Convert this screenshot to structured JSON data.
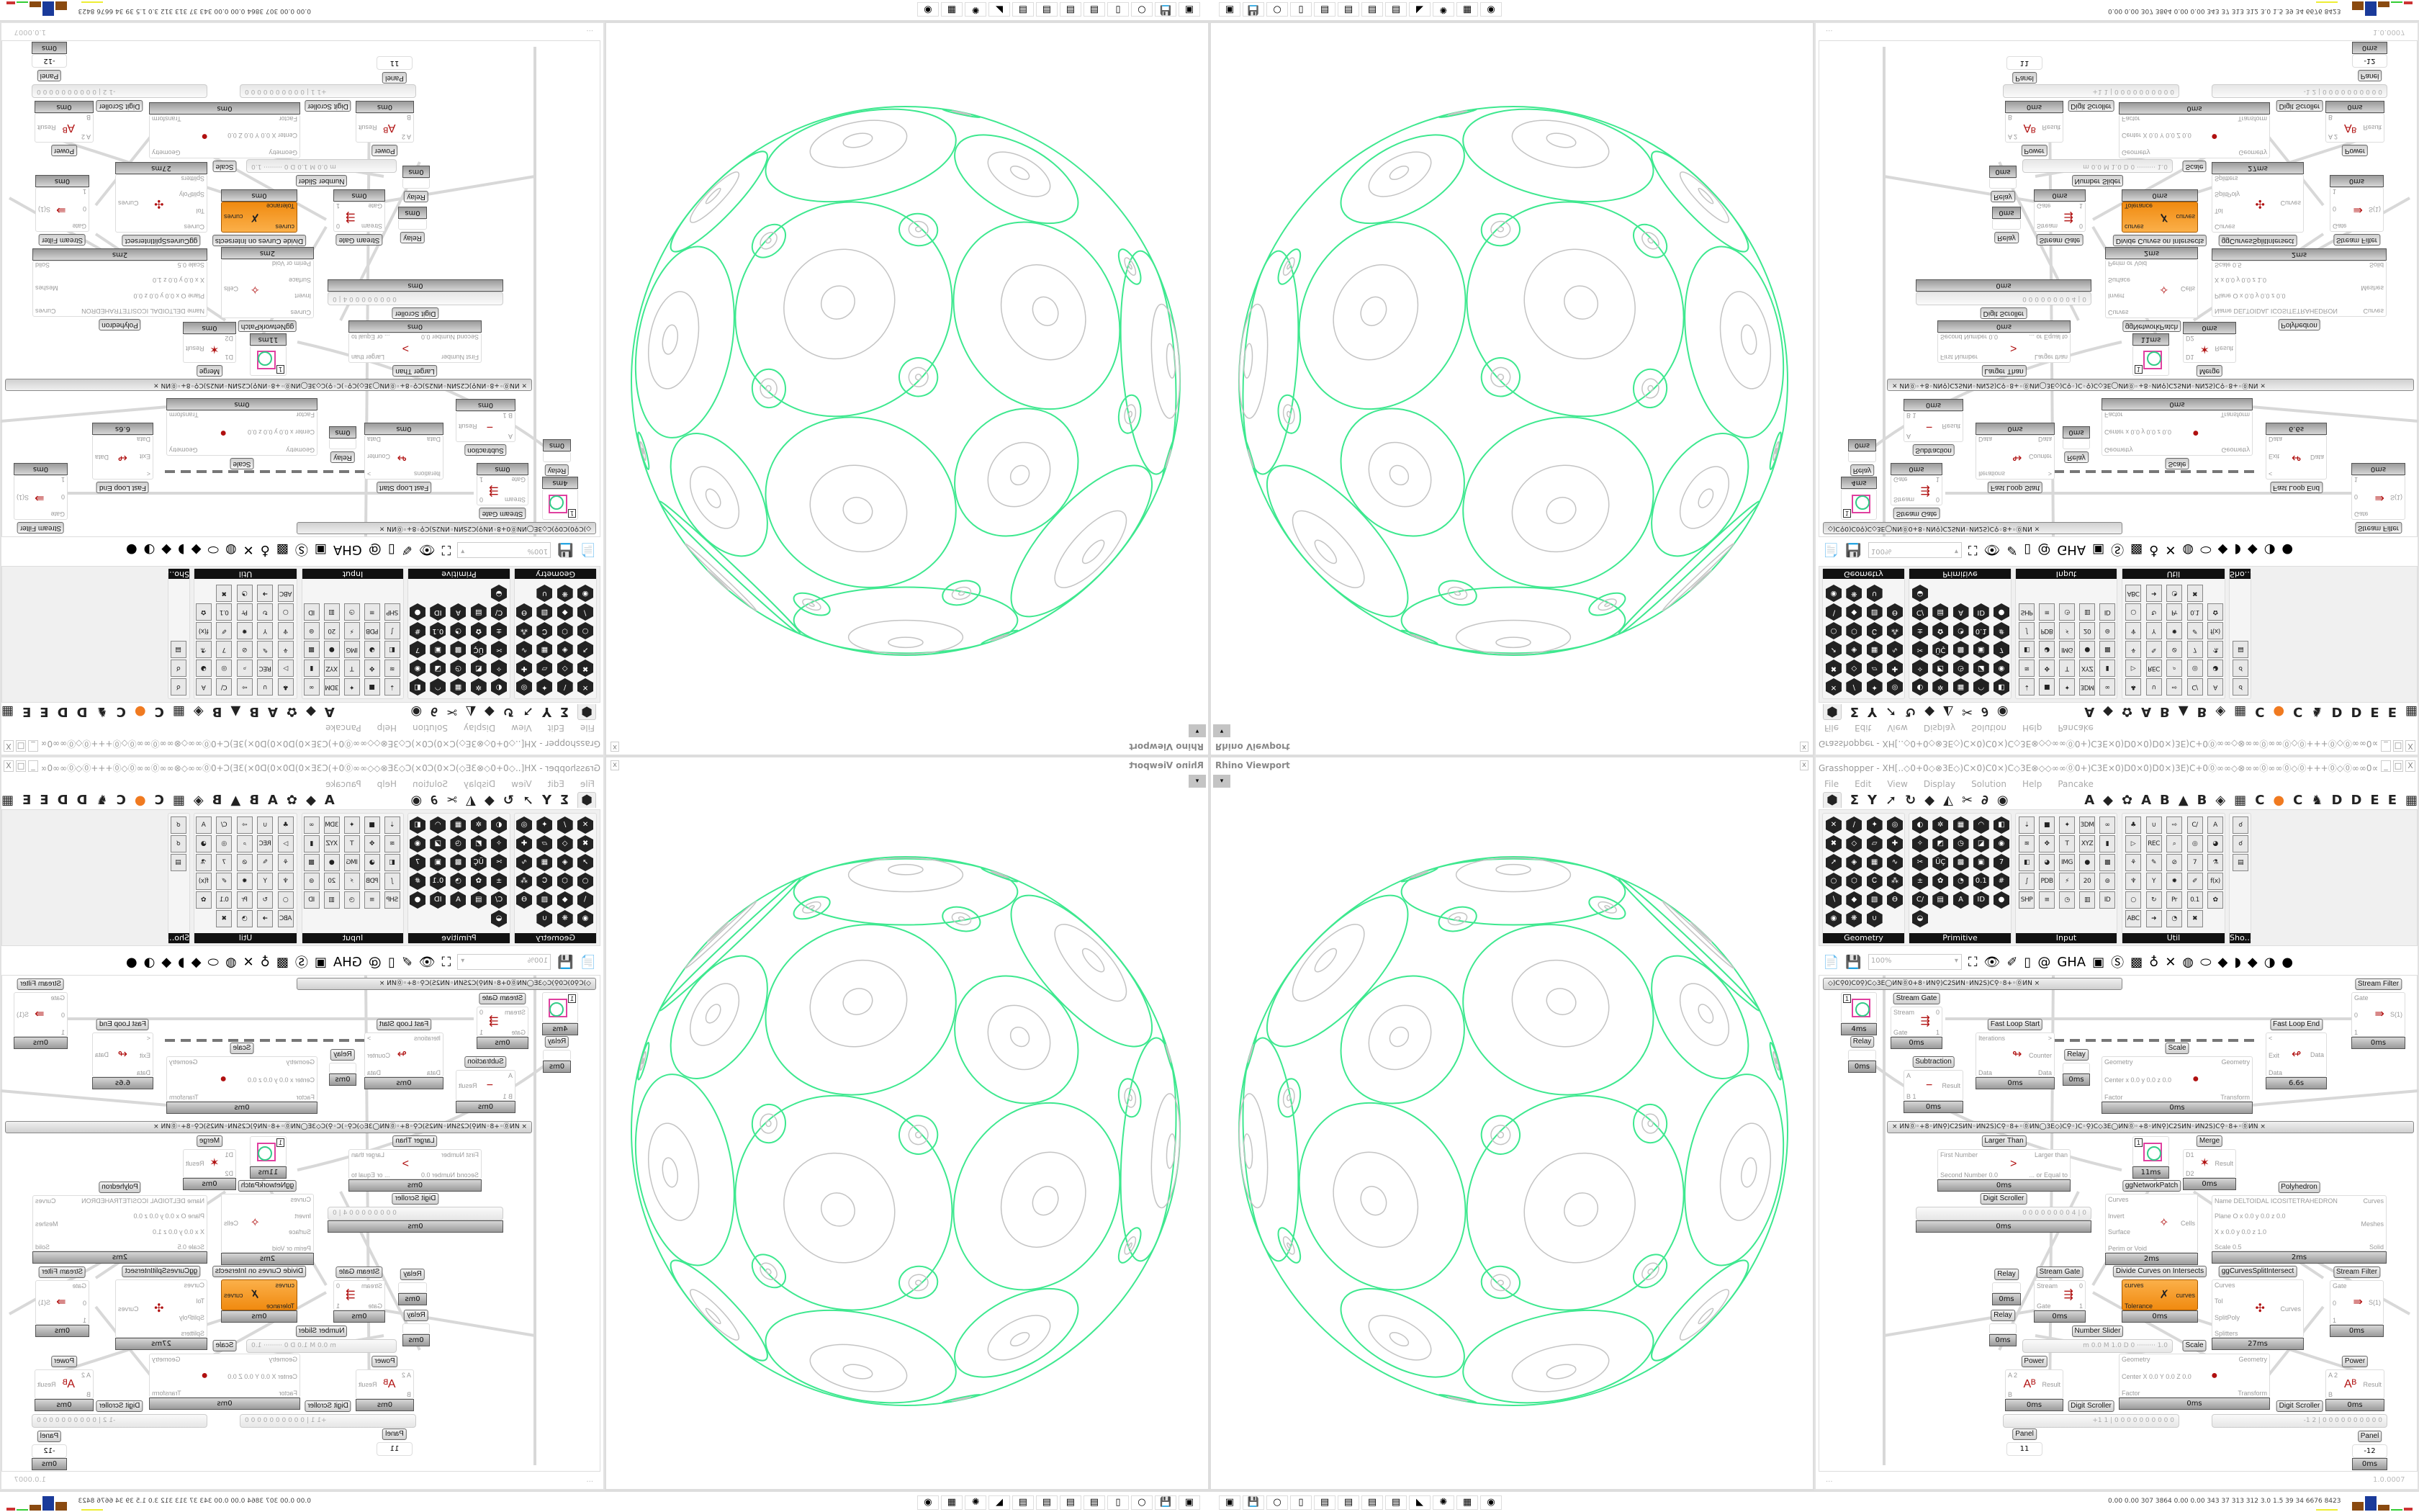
{
  "viewport": {
    "title": "Rhino Viewport",
    "close_label": "x",
    "dropdown_glyph": "▾",
    "colors": {
      "network": "#3ee88f",
      "detail": "#c4c4c4"
    }
  },
  "taskbar": {
    "icons": [
      "task-manager-icon",
      "floppy-64-icon",
      "blank-icon",
      "folder-icon",
      "notepad-icon",
      "notepad-icon",
      "notepad-icon",
      "notepad-icon",
      "inkscape-icon",
      "red-app-icon",
      "calculator-icon",
      "firefox-icon"
    ],
    "glyphs": [
      "▣",
      "💾",
      "○",
      "▯",
      "▤",
      "▤",
      "▤",
      "▤",
      "◣",
      "✺",
      "▦",
      "◉"
    ]
  },
  "grasshopper": {
    "title": "Grasshopper - XH[..◇0+0◇⊗3E◇)C×0)C0×)C◇3E⊗◇◇∞∞⓪0+)C3E×0)D0×0)D0×)3E)C+0⓪∞∞◇⊗∞∞⓪∞∞⓪◇⓪+++⓪◇⓪∞∞0∞∞⊗◇∞∞⓪0+)C3E×0)D0×0)D..",
    "win_buttons": [
      "_",
      "□",
      "X"
    ],
    "menu": [
      "File",
      "Edit",
      "View",
      "Display",
      "Solution",
      "Help",
      "Pancake"
    ],
    "tab_icons": [
      "⬢",
      "Σ",
      "Y",
      "➚",
      "↻",
      "◆",
      "◭",
      "✂",
      "∂",
      "◉"
    ],
    "letter_tabs": [
      "A",
      "◆",
      "✿",
      "A",
      "B",
      "▲",
      "B",
      "◈",
      "▦",
      "C",
      "●",
      "C",
      "♞",
      "D",
      "D",
      "E",
      "E",
      "▦"
    ],
    "panels": [
      {
        "label": "Geometry",
        "cols": 4,
        "style": "hex",
        "icons": [
          "✕",
          "/",
          "✦",
          "◎",
          "✖",
          "◇",
          "▱",
          "✚",
          "➚",
          "◈",
          "▦",
          "∿",
          "○",
          "⬡",
          "Ꮯ",
          "⁂",
          "∖",
          "◆",
          "▧",
          "Ѳ",
          "◉",
          "❋",
          "∪"
        ]
      },
      {
        "label": "Primitive",
        "cols": 5,
        "style": "hex",
        "icons": [
          "◐",
          "✲",
          "▦",
          "◠",
          "◧",
          "✧",
          "◩",
          "◷",
          "◪",
          "◉",
          "✂",
          "ÜÇ",
          "▩",
          "▣",
          "7",
          "±",
          "✿",
          "◔",
          "0.1",
          "#",
          "C/",
          "▤",
          "A",
          "ID",
          "●",
          "◒"
        ]
      },
      {
        "label": "Input",
        "cols": 5,
        "style": "sq",
        "icons": [
          "⇣",
          "■",
          "✦",
          "3DM",
          "∞",
          "≋",
          "✥",
          "T",
          "XYZ",
          "▮",
          "◧",
          "◕",
          "IMG",
          "●",
          "▩",
          "∫",
          "PDB",
          "⚡",
          "20",
          "⊚",
          "SHP",
          "≡",
          "◷",
          "▥",
          "ID"
        ]
      },
      {
        "label": "Util",
        "cols": 5,
        "style": "sq",
        "icons": [
          "♣",
          "∪",
          "⇨",
          "C/",
          "A",
          "▷",
          "REC",
          "⌕",
          "◎",
          "◕",
          "⚘",
          "✎",
          "⊘",
          "7",
          "⚗",
          "♆",
          "Y",
          "✹",
          "✐",
          "f(x)",
          "○",
          "↻",
          "Pr",
          "0.1",
          "✿",
          "ABC",
          "➜",
          "◔",
          "✖"
        ]
      },
      {
        "label": "Sho…",
        "cols": 1,
        "style": "sq",
        "icons": [
          "☌",
          "☌",
          "▤"
        ]
      }
    ],
    "toolbar": {
      "zoom_value": "100%",
      "icons": [
        "📄",
        "💾",
        "⛶",
        "👁",
        "✐",
        "▯",
        "@",
        "GHA",
        "▣",
        "Ⓢ",
        "▩",
        "♁",
        "✕",
        "◍",
        "⬭",
        "◆",
        "◗",
        "◆",
        "◑",
        "●"
      ]
    },
    "group_bars": [
      "◇)C⚲0)C0⚲)C◇3E◯ИN⓪0+8◦ИN⚲)C2SИN◦ИN2S)C⚲◦8+◦⓪ИN        ×",
      "×       ИN⓪◦+8◦ИN⚲)C2SИN◦ИN2S)C⚲◦8+◦⓪ИN◯3E◇)C⚲◦)C◦⚲)C◇3E◯ИN⓪◦+8◦ИN⚲)C2SИN◦ИN2S)C⚲◦8+◦⓪ИN        ×"
    ],
    "components": [
      {
        "label": "",
        "time": "4ms",
        "kind": "preview",
        "inputs": [],
        "outputs": [],
        "value": "1"
      },
      {
        "label": "Relay",
        "time": "0ms",
        "kind": "relay",
        "inputs": [],
        "outputs": []
      },
      {
        "label": "Stream Gate",
        "time": "0ms",
        "kind": "std",
        "inputs": [
          "Stream",
          "Gate"
        ],
        "outputs": [
          "0",
          "1"
        ],
        "icon": "⇶"
      },
      {
        "label": "Fast Loop Start",
        "time": "0ms",
        "kind": "std",
        "inputs": [
          "Iterations",
          "Data"
        ],
        "outputs": [
          ">",
          "Counter",
          "Data"
        ],
        "icon": "↬"
      },
      {
        "label": "Relay",
        "time": "0ms",
        "kind": "relay",
        "inputs": [],
        "outputs": []
      },
      {
        "label": "Subtraction",
        "time": "0ms",
        "kind": "std",
        "inputs": [
          "A",
          "B 1"
        ],
        "outputs": [
          "Result"
        ],
        "icon": "−"
      },
      {
        "label": "Scale",
        "time": "0ms",
        "kind": "std",
        "inputs": [
          "Geometry",
          "Center x 0.0 y 0.0 z 0.0",
          "Factor"
        ],
        "outputs": [
          "Geometry",
          "Transform"
        ],
        "icon": "●"
      },
      {
        "label": "Fast Loop End",
        "time": "6.6s",
        "kind": "std",
        "inputs": [
          "<",
          "Exit",
          "Data"
        ],
        "outputs": [
          "Data"
        ],
        "icon": "↫"
      },
      {
        "label": "Stream Filter",
        "time": "0ms",
        "kind": "std",
        "inputs": [
          "Gate",
          "0",
          "1"
        ],
        "outputs": [
          "S(1)"
        ],
        "icon": "⇛"
      },
      {
        "label": "Larger Than",
        "time": "0ms",
        "kind": "std",
        "inputs": [
          "First Number",
          "Second Number 0.0"
        ],
        "outputs": [
          "Larger than",
          "... or Equal to"
        ],
        "icon": ">"
      },
      {
        "label": "",
        "time": "11ms",
        "kind": "preview",
        "inputs": [],
        "outputs": [],
        "value": "1"
      },
      {
        "label": "Merge",
        "time": "0ms",
        "kind": "std",
        "inputs": [
          "D1",
          "D2"
        ],
        "outputs": [
          "Result"
        ],
        "icon": "✶"
      },
      {
        "label": "ggNetworkPatch",
        "time": "2ms",
        "kind": "std",
        "inputs": [
          "Curves",
          "Invert",
          "Surface",
          "Perim or Void"
        ],
        "outputs": [
          "Cells"
        ],
        "icon": "✧"
      },
      {
        "label": "Polyhedron",
        "time": "2ms",
        "kind": "std",
        "inputs": [
          "Name DELTOIDAL ICOSITETRAHEDRON",
          "Plane  O x 0.0 y 0.0 z 0.0",
          "X x 0.0 y 0.0 z 1.0",
          "Scale 0.5"
        ],
        "outputs": [
          "Curves",
          "Meshes",
          "Solid"
        ],
        "icon": ""
      },
      {
        "label": "Relay",
        "time": "0ms",
        "kind": "relay",
        "inputs": [],
        "outputs": []
      },
      {
        "label": "Stream Gate",
        "time": "0ms",
        "kind": "std",
        "inputs": [
          "Stream",
          "Gate"
        ],
        "outputs": [
          "0",
          "1"
        ],
        "icon": "⇶"
      },
      {
        "label": "Divide Curves on Intersects",
        "time": "0ms",
        "kind": "orange",
        "inputs": [
          "curves",
          "Tolerance"
        ],
        "outputs": [
          "curves"
        ],
        "icon": "✗"
      },
      {
        "label": "ggCurvesSplitIntersect",
        "time": "27ms",
        "kind": "std",
        "inputs": [
          "Curves",
          "Tol",
          "SplitPoly",
          "Splitters"
        ],
        "outputs": [
          "Curves"
        ],
        "icon": "✣"
      },
      {
        "label": "Stream Filter",
        "time": "0ms",
        "kind": "std",
        "inputs": [
          "Gate",
          "0",
          "1"
        ],
        "outputs": [
          "S(1)"
        ],
        "icon": "⇛"
      },
      {
        "label": "Relay",
        "time": "0ms",
        "kind": "relay",
        "inputs": [],
        "outputs": []
      },
      {
        "label": "Scale",
        "time": "0ms",
        "kind": "std",
        "inputs": [
          "Geometry",
          "Center X 0.0 Y 0.0 Z 0.0",
          "Factor"
        ],
        "outputs": [
          "Geometry",
          "Transform"
        ],
        "icon": "●"
      },
      {
        "label": "Power",
        "time": "0ms",
        "kind": "std",
        "inputs": [
          "A 2",
          "B"
        ],
        "outputs": [
          "Result"
        ],
        "icon": "Aᴮ"
      },
      {
        "label": "Power",
        "time": "0ms",
        "kind": "std",
        "inputs": [
          "A 2",
          "B"
        ],
        "outputs": [
          "Result"
        ],
        "icon": "Aᴮ"
      }
    ],
    "sliders": [
      {
        "label": "Digit Scroller",
        "value": "0 0 0 0 0 0 0 0 4 | 0",
        "time": "0ms"
      },
      {
        "label": "Number Slider",
        "value": "m 0.0  M 1.0  D 0   ·········   1.0"
      },
      {
        "label": "Digit Scroller",
        "value": "+1 1 | 0 0 0 0 0 0 0 0 0 0"
      },
      {
        "label": "Digit Scroller",
        "value": "-1 2 | 0 0 0 0 0 0 0 0 0 0"
      }
    ],
    "panels_canvas": [
      {
        "label": "Panel",
        "value": "11"
      },
      {
        "label": "Panel",
        "value": "-12",
        "time": "0ms"
      }
    ],
    "status": {
      "left": "...",
      "version": "1.0.0007"
    }
  },
  "perf_stats": "0.00 0.00 307 3864 0.00 0.00 343 37 313 312 3.0 1.5 39 34 6676 8423"
}
